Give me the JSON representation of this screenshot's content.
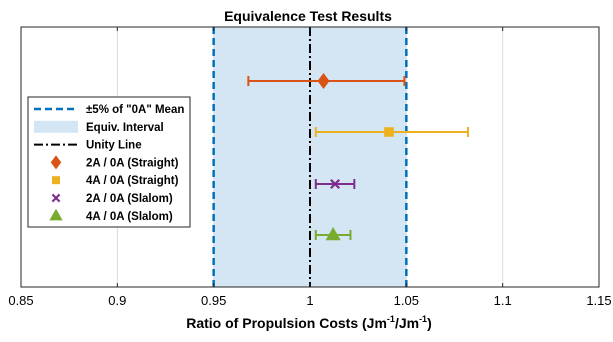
{
  "chart_data": {
    "type": "scatter",
    "title": "Equivalence Test Results",
    "xlabel_main": "Ratio of Propulsion Costs (Jm",
    "xlabel_sup1": "-1",
    "xlabel_mid": "/Jm",
    "xlabel_sup2": "-1",
    "xlabel_end": ")",
    "xlim": [
      0.85,
      1.15
    ],
    "xticks": [
      0.85,
      0.9,
      0.95,
      1.0,
      1.05,
      1.1,
      1.15
    ],
    "xtick_labels": [
      "0.85",
      "0.9",
      "0.95",
      "1",
      "1.05",
      "1.1",
      "1.15"
    ],
    "grid": "vertical",
    "legend_position": "left",
    "equivalence_interval": [
      0.95,
      1.05
    ],
    "unity_line": 1.0,
    "series": [
      {
        "name": "2A / 0A (Straight)",
        "marker": "diamond",
        "color": "#D95319",
        "x": 1.007,
        "low": 0.968,
        "high": 1.049
      },
      {
        "name": "4A / 0A (Straight)",
        "marker": "square",
        "color": "#EDB120",
        "x": 1.041,
        "low": 1.003,
        "high": 1.082
      },
      {
        "name": "2A / 0A (Slalom)",
        "marker": "x",
        "color": "#7E2F8E",
        "x": 1.013,
        "low": 1.003,
        "high": 1.023
      },
      {
        "name": "4A / 0A (Slalom)",
        "marker": "triangle",
        "color": "#77AC30",
        "x": 1.012,
        "low": 1.003,
        "high": 1.021
      }
    ],
    "legend": [
      {
        "label": "±5% of \"0A\" Mean",
        "kind": "dashed-line",
        "color": "#0072BD"
      },
      {
        "label": "Equiv. Interval",
        "kind": "patch",
        "color": "#D4E6F4"
      },
      {
        "label": "Unity Line",
        "kind": "dashdot-line",
        "color": "#000000"
      },
      {
        "label": "2A / 0A (Straight)",
        "kind": "diamond",
        "color": "#D95319"
      },
      {
        "label": "4A / 0A (Straight)",
        "kind": "square",
        "color": "#EDB120"
      },
      {
        "label": "2A / 0A (Slalom)",
        "kind": "x",
        "color": "#7E2F8E"
      },
      {
        "label": "4A / 0A (Slalom)",
        "kind": "triangle",
        "color": "#77AC30"
      }
    ]
  }
}
